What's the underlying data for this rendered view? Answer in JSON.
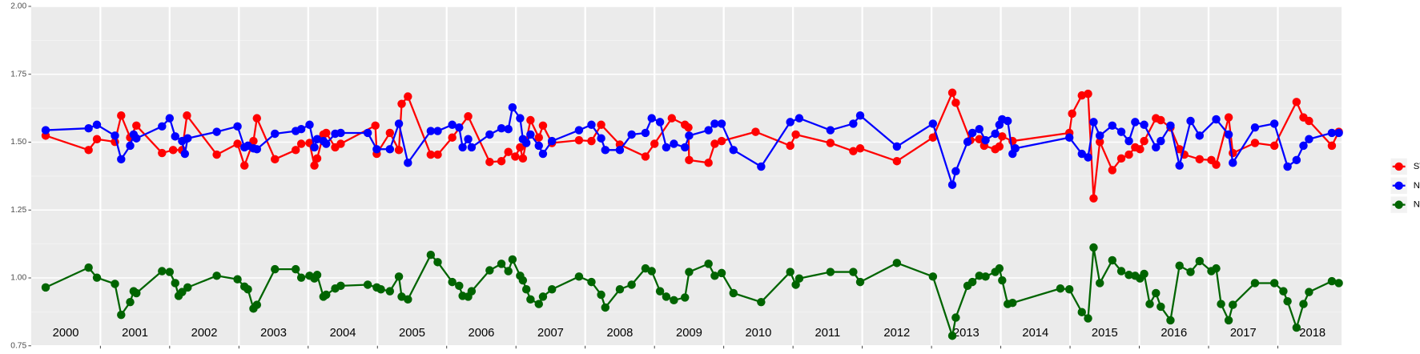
{
  "chart_data": {
    "type": "line",
    "xlim": [
      2000,
      2018.92
    ],
    "ylim": [
      0.75,
      2
    ],
    "yticks": [
      {
        "value": 0.75,
        "label": "0.75"
      },
      {
        "value": 1,
        "label": "1.00"
      },
      {
        "value": 1.25,
        "label": "1.25"
      },
      {
        "value": 1.5,
        "label": "1.50"
      },
      {
        "value": 1.75,
        "label": "1.75"
      },
      {
        "value": 2,
        "label": "2.00"
      }
    ],
    "y_minor_ticks": [
      0.875,
      1.125,
      1.375,
      1.625,
      1.875
    ],
    "xticks": [
      2001,
      2002,
      2003,
      2004,
      2005,
      2006,
      2007,
      2008,
      2009,
      2010,
      2011,
      2012,
      2013,
      2014,
      2015,
      2016,
      2017,
      2018
    ],
    "year_labels": [
      {
        "value": 2000.5,
        "label": "2000"
      },
      {
        "value": 2001.5,
        "label": "2001"
      },
      {
        "value": 2002.5,
        "label": "2002"
      },
      {
        "value": 2003.5,
        "label": "2003"
      },
      {
        "value": 2004.5,
        "label": "2004"
      },
      {
        "value": 2005.5,
        "label": "2005"
      },
      {
        "value": 2006.5,
        "label": "2006"
      },
      {
        "value": 2007.5,
        "label": "2007"
      },
      {
        "value": 2008.5,
        "label": "2008"
      },
      {
        "value": 2009.5,
        "label": "2009"
      },
      {
        "value": 2010.5,
        "label": "2010"
      },
      {
        "value": 2011.5,
        "label": "2011"
      },
      {
        "value": 2012.5,
        "label": "2012"
      },
      {
        "value": 2013.5,
        "label": "2013"
      },
      {
        "value": 2014.5,
        "label": "2014"
      },
      {
        "value": 2015.5,
        "label": "2015"
      },
      {
        "value": 2016.5,
        "label": "2016"
      },
      {
        "value": 2017.5,
        "label": "2017"
      },
      {
        "value": 2018.5,
        "label": "2018"
      }
    ],
    "grid": true,
    "legend": "right",
    "series": [
      {
        "name": "SWIR",
        "color": "#ff0000",
        "x": [
          2000.21,
          2000.83,
          2000.95,
          2001.21,
          2001.3,
          2001.43,
          2001.52,
          2001.89,
          2002.05,
          2002.18,
          2002.25,
          2002.68,
          2002.98,
          2003.08,
          2003.21,
          2003.26,
          2003.52,
          2003.82,
          2003.9,
          2004.02,
          2004.09,
          2004.13,
          2004.22,
          2004.26,
          2004.39,
          2004.47,
          2004.97,
          2004.99,
          2005.18,
          2005.31,
          2005.35,
          2005.44,
          2005.77,
          2005.87,
          2006.08,
          2006.31,
          2006.62,
          2006.79,
          2006.89,
          2006.99,
          2007.06,
          2007.1,
          2007.21,
          2007.33,
          2007.39,
          2007.52,
          2007.91,
          2008.09,
          2008.23,
          2008.5,
          2008.87,
          2009.0,
          2009.25,
          2009.44,
          2009.49,
          2009.5,
          2009.78,
          2009.87,
          2009.97,
          2010.46,
          2010.96,
          2011.04,
          2011.54,
          2011.87,
          2011.97,
          2012.5,
          2013.02,
          2013.3,
          2013.35,
          2013.56,
          2013.69,
          2013.76,
          2013.92,
          2013.98,
          2014.02,
          2014.17,
          2014.99,
          2015.03,
          2015.17,
          2015.26,
          2015.34,
          2015.43,
          2015.61,
          2015.74,
          2015.85,
          2015.94,
          2016.01,
          2016.07,
          2016.24,
          2016.31,
          2016.45,
          2016.58,
          2016.65,
          2016.87,
          2017.04,
          2017.11,
          2017.29,
          2017.35,
          2017.67,
          2017.95,
          2018.27,
          2018.37,
          2018.45,
          2018.78,
          2018.88
        ],
        "values": [
          1.524,
          1.471,
          1.511,
          1.501,
          1.598,
          1.517,
          1.561,
          1.46,
          1.471,
          1.471,
          1.598,
          1.454,
          1.494,
          1.414,
          1.504,
          1.588,
          1.437,
          1.471,
          1.494,
          1.497,
          1.414,
          1.44,
          1.528,
          1.534,
          1.481,
          1.494,
          1.561,
          1.457,
          1.534,
          1.471,
          1.641,
          1.668,
          1.454,
          1.454,
          1.517,
          1.595,
          1.427,
          1.43,
          1.464,
          1.447,
          1.481,
          1.44,
          1.581,
          1.517,
          1.561,
          1.497,
          1.507,
          1.504,
          1.564,
          1.491,
          1.447,
          1.494,
          1.588,
          1.564,
          1.554,
          1.434,
          1.424,
          1.494,
          1.504,
          1.538,
          1.487,
          1.528,
          1.497,
          1.467,
          1.477,
          1.43,
          1.517,
          1.682,
          1.645,
          1.507,
          1.511,
          1.487,
          1.474,
          1.484,
          1.521,
          1.504,
          1.534,
          1.605,
          1.672,
          1.678,
          1.293,
          1.501,
          1.397,
          1.44,
          1.454,
          1.481,
          1.474,
          1.504,
          1.588,
          1.581,
          1.554,
          1.474,
          1.454,
          1.437,
          1.434,
          1.417,
          1.591,
          1.46,
          1.497,
          1.487,
          1.648,
          1.591,
          1.578,
          1.487,
          1.538
        ]
      },
      {
        "name": "NDVI",
        "color": "#0000ff",
        "x": [
          2000.21,
          2000.83,
          2000.95,
          2001.21,
          2001.3,
          2001.43,
          2001.48,
          2001.52,
          2001.89,
          2002.0,
          2002.08,
          2002.18,
          2002.22,
          2002.26,
          2002.68,
          2002.98,
          2003.08,
          2003.13,
          2003.21,
          2003.26,
          2003.52,
          2003.82,
          2003.9,
          2004.02,
          2004.09,
          2004.13,
          2004.22,
          2004.26,
          2004.39,
          2004.47,
          2004.86,
          2004.99,
          2005.18,
          2005.31,
          2005.44,
          2005.77,
          2005.87,
          2006.08,
          2006.18,
          2006.23,
          2006.31,
          2006.36,
          2006.62,
          2006.79,
          2006.89,
          2006.95,
          2007.06,
          2007.1,
          2007.15,
          2007.21,
          2007.33,
          2007.39,
          2007.52,
          2007.91,
          2008.09,
          2008.23,
          2008.29,
          2008.5,
          2008.67,
          2008.87,
          2008.96,
          2009.08,
          2009.17,
          2009.28,
          2009.44,
          2009.5,
          2009.78,
          2009.87,
          2009.97,
          2010.14,
          2010.54,
          2010.96,
          2011.09,
          2011.54,
          2011.87,
          2011.97,
          2012.5,
          2013.02,
          2013.3,
          2013.35,
          2013.52,
          2013.59,
          2013.69,
          2013.78,
          2013.92,
          2013.98,
          2014.02,
          2014.1,
          2014.17,
          2014.21,
          2014.99,
          2015.17,
          2015.26,
          2015.34,
          2015.43,
          2015.61,
          2015.74,
          2015.85,
          2015.94,
          2016.07,
          2016.24,
          2016.31,
          2016.45,
          2016.58,
          2016.74,
          2016.87,
          2017.11,
          2017.29,
          2017.35,
          2017.67,
          2017.95,
          2018.14,
          2018.27,
          2018.37,
          2018.45,
          2018.78,
          2018.88
        ],
        "values": [
          1.544,
          1.551,
          1.564,
          1.524,
          1.437,
          1.487,
          1.528,
          1.514,
          1.558,
          1.588,
          1.521,
          1.504,
          1.457,
          1.514,
          1.538,
          1.558,
          1.481,
          1.487,
          1.477,
          1.474,
          1.531,
          1.541,
          1.548,
          1.564,
          1.481,
          1.511,
          1.504,
          1.494,
          1.531,
          1.534,
          1.534,
          1.474,
          1.474,
          1.568,
          1.424,
          1.541,
          1.541,
          1.564,
          1.554,
          1.481,
          1.511,
          1.481,
          1.528,
          1.551,
          1.548,
          1.628,
          1.588,
          1.511,
          1.497,
          1.528,
          1.487,
          1.457,
          1.504,
          1.544,
          1.564,
          1.514,
          1.471,
          1.471,
          1.528,
          1.534,
          1.588,
          1.574,
          1.481,
          1.494,
          1.481,
          1.524,
          1.544,
          1.568,
          1.568,
          1.471,
          1.41,
          1.574,
          1.588,
          1.544,
          1.568,
          1.598,
          1.484,
          1.568,
          1.343,
          1.393,
          1.501,
          1.534,
          1.548,
          1.507,
          1.531,
          1.564,
          1.584,
          1.578,
          1.457,
          1.477,
          1.517,
          1.457,
          1.444,
          1.574,
          1.524,
          1.561,
          1.538,
          1.504,
          1.574,
          1.564,
          1.481,
          1.504,
          1.561,
          1.414,
          1.578,
          1.524,
          1.584,
          1.528,
          1.424,
          1.554,
          1.568,
          1.41,
          1.434,
          1.487,
          1.511,
          1.534,
          1.534
        ]
      },
      {
        "name": "NDWI",
        "color": "#006400",
        "x": [
          2000.21,
          2000.83,
          2000.95,
          2001.21,
          2001.3,
          2001.43,
          2001.48,
          2001.52,
          2001.89,
          2002.0,
          2002.08,
          2002.13,
          2002.18,
          2002.26,
          2002.68,
          2002.98,
          2003.08,
          2003.13,
          2003.21,
          2003.26,
          2003.52,
          2003.82,
          2003.9,
          2004.02,
          2004.09,
          2004.13,
          2004.22,
          2004.26,
          2004.39,
          2004.47,
          2004.86,
          2004.99,
          2005.05,
          2005.18,
          2005.31,
          2005.35,
          2005.44,
          2005.77,
          2005.87,
          2006.08,
          2006.18,
          2006.23,
          2006.31,
          2006.36,
          2006.62,
          2006.79,
          2006.89,
          2006.95,
          2007.06,
          2007.1,
          2007.15,
          2007.21,
          2007.33,
          2007.39,
          2007.52,
          2007.91,
          2008.09,
          2008.23,
          2008.29,
          2008.5,
          2008.67,
          2008.87,
          2008.96,
          2009.08,
          2009.17,
          2009.28,
          2009.44,
          2009.5,
          2009.78,
          2009.87,
          2009.97,
          2010.14,
          2010.54,
          2010.96,
          2011.04,
          2011.09,
          2011.54,
          2011.87,
          2011.97,
          2012.5,
          2013.02,
          2013.3,
          2013.35,
          2013.52,
          2013.59,
          2013.69,
          2013.78,
          2013.92,
          2013.98,
          2014.02,
          2014.1,
          2014.17,
          2014.86,
          2014.99,
          2015.17,
          2015.26,
          2015.34,
          2015.43,
          2015.61,
          2015.74,
          2015.85,
          2015.94,
          2016.01,
          2016.07,
          2016.15,
          2016.24,
          2016.31,
          2016.45,
          2016.58,
          2016.74,
          2016.87,
          2017.04,
          2017.11,
          2017.18,
          2017.29,
          2017.35,
          2017.67,
          2017.95,
          2018.08,
          2018.14,
          2018.27,
          2018.37,
          2018.45,
          2018.78,
          2018.88
        ],
        "values": [
          0.965,
          1.038,
          1.001,
          0.978,
          0.864,
          0.911,
          0.951,
          0.944,
          1.025,
          1.022,
          0.981,
          0.934,
          0.948,
          0.965,
          1.008,
          0.995,
          0.968,
          0.958,
          0.887,
          0.901,
          1.032,
          1.032,
          1.001,
          1.008,
          0.998,
          1.011,
          0.931,
          0.938,
          0.961,
          0.971,
          0.975,
          0.965,
          0.958,
          0.951,
          1.005,
          0.931,
          0.921,
          1.085,
          1.058,
          0.985,
          0.971,
          0.934,
          0.931,
          0.951,
          1.028,
          1.052,
          1.025,
          1.068,
          1.008,
          0.991,
          0.958,
          0.921,
          0.904,
          0.931,
          0.958,
          1.005,
          0.985,
          0.938,
          0.891,
          0.958,
          0.975,
          1.035,
          1.025,
          0.951,
          0.931,
          0.918,
          0.928,
          1.022,
          1.052,
          1.008,
          1.018,
          0.944,
          0.911,
          1.022,
          0.975,
          0.998,
          1.022,
          1.022,
          0.985,
          1.055,
          1.005,
          0.787,
          0.854,
          0.971,
          0.985,
          1.008,
          1.005,
          1.022,
          1.035,
          0.991,
          0.904,
          0.908,
          0.961,
          0.958,
          0.874,
          0.851,
          1.112,
          0.981,
          1.065,
          1.025,
          1.011,
          1.008,
          0.998,
          1.015,
          0.904,
          0.944,
          0.894,
          0.844,
          1.045,
          1.022,
          1.062,
          1.025,
          1.035,
          0.904,
          0.844,
          0.901,
          0.981,
          0.981,
          0.951,
          0.914,
          0.817,
          0.904,
          0.948,
          0.988,
          0.981
        ]
      }
    ]
  }
}
